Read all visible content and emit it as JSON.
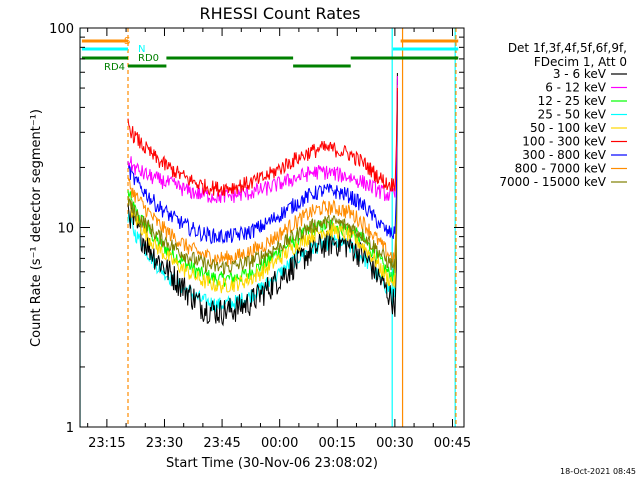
{
  "chart_data": {
    "type": "line",
    "title": "RHESSI Count Rates",
    "xlabel": "Start Time (30-Nov-06 23:08:02)",
    "ylabel": "Count Rate (s⁻¹ detector segment⁻¹)",
    "ylim": [
      1,
      100
    ],
    "yscale": "log",
    "x_unit": "minutes from 23:08:02",
    "xlim": [
      0,
      100
    ],
    "x_ticks": [
      "23:15",
      "23:30",
      "23:45",
      "00:00",
      "00:15",
      "00:30",
      "00:45"
    ],
    "x_tick_values": [
      7,
      22,
      37,
      52,
      67,
      82,
      97
    ],
    "y_ticks": [
      "1",
      "10",
      "100"
    ],
    "y_tick_values": [
      1,
      10,
      100
    ],
    "legend_header": [
      "Det 1f,3f,4f,5f,6f,9f,",
      "FDecim 1, Att 0"
    ],
    "legend_placement": "right",
    "timestamp": "18-Oct-2021 08:45",
    "x": [
      12.5,
      14,
      17,
      20,
      24,
      28,
      32,
      36,
      40,
      44,
      48,
      52,
      56,
      60,
      63,
      66,
      70,
      74,
      77,
      80,
      82
    ],
    "series": [
      {
        "name": "3 - 6 keV",
        "color": "#000000",
        "values": [
          12.5,
          10.5,
          8.5,
          7,
          5.8,
          4.8,
          4,
          3.8,
          3.9,
          4.2,
          4.8,
          5.6,
          6.6,
          7.6,
          8.2,
          8.5,
          8.2,
          7.2,
          6,
          4.8,
          4.2
        ]
      },
      {
        "name": "6 - 12 keV",
        "color": "#ff00ff",
        "values": [
          22,
          20,
          18.5,
          17.5,
          16.5,
          15.3,
          14.6,
          14.3,
          14.5,
          14.9,
          15.6,
          16.6,
          17.7,
          18.8,
          19.1,
          18.7,
          18,
          16.8,
          15.6,
          14.6,
          14.5
        ]
      },
      {
        "name": "12 - 25 keV",
        "color": "#00ff00",
        "values": [
          15,
          12.5,
          10.2,
          8.6,
          7.4,
          6.5,
          5.8,
          5.5,
          5.6,
          5.9,
          6.6,
          7.6,
          8.7,
          9.7,
          10.2,
          10.3,
          9.8,
          8.6,
          7.3,
          6,
          5.6
        ]
      },
      {
        "name": "25 - 50 keV",
        "color": "#00ffff",
        "values": [
          11.5,
          9.6,
          7.8,
          6.5,
          5.5,
          4.8,
          4.3,
          4.1,
          4.2,
          4.5,
          5.1,
          5.9,
          6.9,
          7.8,
          8.3,
          8.5,
          8.1,
          7,
          5.9,
          5,
          4.7
        ]
      },
      {
        "name": "50 - 100 keV",
        "color": "#ffd700",
        "values": [
          13.5,
          11.4,
          9.4,
          8,
          6.8,
          6,
          5.4,
          5.1,
          5.2,
          5.5,
          6.1,
          7,
          8.1,
          9.1,
          9.6,
          9.7,
          9.2,
          8,
          6.8,
          5.6,
          5.3
        ]
      },
      {
        "name": "100 - 300 keV",
        "color": "#ff0000",
        "values": [
          33,
          29,
          25,
          22,
          19.5,
          17.5,
          16.2,
          15.7,
          16,
          16.7,
          17.8,
          19.8,
          22,
          24,
          25,
          24.8,
          23.5,
          21,
          18.5,
          16.5,
          16.5
        ]
      },
      {
        "name": "300 - 800 keV",
        "color": "#0000ff",
        "values": [
          20,
          17.5,
          15,
          13,
          11.3,
          10.1,
          9.3,
          9,
          9.1,
          9.5,
          10.3,
          11.6,
          13.1,
          14.6,
          15.3,
          15.3,
          14.5,
          12.8,
          11,
          9.5,
          9.3
        ]
      },
      {
        "name": "800 - 7000 keV",
        "color": "#ff8c00",
        "values": [
          17,
          14.8,
          12.5,
          10.6,
          9.1,
          8,
          7.3,
          7,
          7.1,
          7.5,
          8.2,
          9.3,
          10.6,
          11.9,
          12.5,
          12.6,
          12,
          10.5,
          8.9,
          7.5,
          7
        ]
      },
      {
        "name": "7000 - 15000 keV",
        "color": "#7f7f00",
        "values": [
          14,
          12,
          10.5,
          9.2,
          8.1,
          7.2,
          6.6,
          6.3,
          6.4,
          6.7,
          7.3,
          8.1,
          9.1,
          10.1,
          10.6,
          10.7,
          10.2,
          9.1,
          7.9,
          6.8,
          6.4
        ]
      }
    ],
    "bars": {
      "rows": [
        {
          "label": "S",
          "color": "#ff8c00",
          "segments": [
            [
              0.5,
              12.5
            ],
            [
              83.5,
              98.5
            ]
          ]
        },
        {
          "label": "N",
          "color": "#00ffff",
          "segments": [
            [
              0.5,
              12.5
            ],
            [
              81.5,
              98.5
            ]
          ]
        },
        {
          "label": "RD0",
          "color": "#008000",
          "segments": [
            [
              0.5,
              12.5
            ],
            [
              22.5,
              55.5
            ],
            [
              70.5,
              98.5
            ]
          ]
        },
        {
          "label": "RD4",
          "color": "#008000",
          "segments": [
            [
              12.5,
              22.5
            ],
            [
              55.5,
              70.5
            ]
          ]
        }
      ]
    },
    "vlines": [
      {
        "x": 0,
        "color": "#00ffff",
        "style": "solid"
      },
      {
        "x": 12.5,
        "color": "#ff8c00",
        "style": "dashed"
      },
      {
        "x": 81.3,
        "color": "#00ffff",
        "style": "solid"
      },
      {
        "x": 84,
        "color": "#ff8c00",
        "style": "solid"
      },
      {
        "x": 97.7,
        "color": "#00ffff",
        "style": "solid"
      },
      {
        "x": 97.9,
        "color": "#ff8c00",
        "style": "dashed"
      }
    ]
  }
}
